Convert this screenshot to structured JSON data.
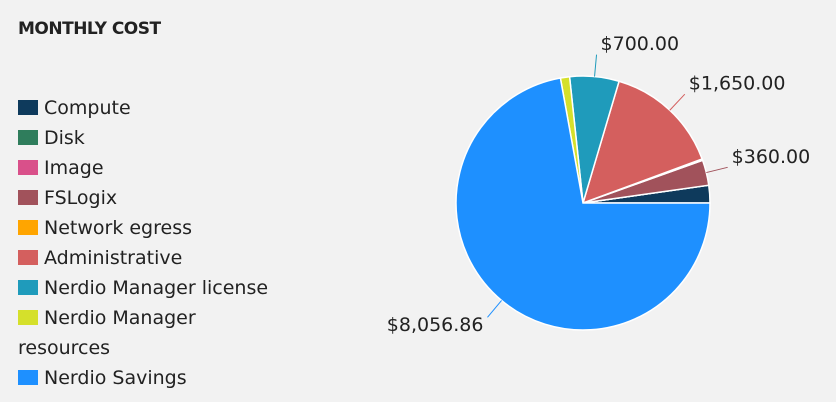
{
  "chart_data": {
    "type": "pie",
    "title": "MONTHLY COST",
    "categories": [
      "Compute",
      "Disk",
      "Image",
      "FSLogix",
      "Network egress",
      "Administrative",
      "Nerdio Manager license",
      "Nerdio Manager resources",
      "Nerdio Savings"
    ],
    "values": [
      250,
      0,
      0,
      360,
      20,
      1650,
      700,
      130,
      8056.86
    ],
    "value_labels": [
      null,
      null,
      null,
      "$360.00",
      null,
      "$1,650.00",
      "$700.00",
      null,
      "$8,056.86"
    ],
    "colors": [
      "#0e3a5c",
      "#2f7d5c",
      "#d9508a",
      "#a1525b",
      "#ffa500",
      "#d45f5e",
      "#1f9bbb",
      "#d5e02b",
      "#1e90ff"
    ]
  }
}
